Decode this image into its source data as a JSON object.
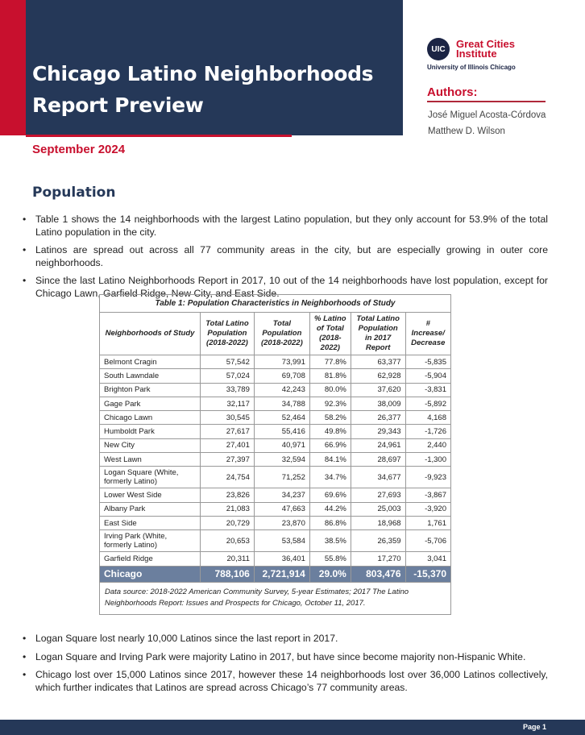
{
  "header": {
    "title_line1": "Chicago Latino Neighborhoods",
    "title_line2": "Report Preview",
    "date": "September 2024"
  },
  "logo": {
    "badge": "UIC",
    "name_line1": "Great Cities",
    "name_line2": "Institute",
    "university": "University of Illinois Chicago"
  },
  "authors": {
    "heading": "Authors:",
    "names": [
      "José Miguel Acosta-Córdova",
      "Matthew D. Wilson"
    ]
  },
  "section": {
    "heading": "Population"
  },
  "bullets_top": [
    "Table 1 shows the 14 neighborhoods with the largest Latino population, but they only account for 53.9% of the total Latino population in the city.",
    "Latinos are spread out across all 77 community areas in the city, but are especially growing in outer core neighborhoods.",
    "Since the last Latino Neighborhoods Report in 2017, 10 out of the 14 neighborhoods have lost population, except for Chicago Lawn, Garfield Ridge, New City, and East Side."
  ],
  "table": {
    "caption": "Table 1: Population Characteristics in Neighborhoods of Study",
    "headers": [
      "Neighborhoods of Study",
      "Total Latino Population (2018-2022)",
      "Total Population (2018-2022)",
      "% Latino of Total (2018-2022)",
      "Total Latino Population in 2017 Report",
      "# Increase/ Decrease"
    ],
    "rows": [
      [
        "Belmont Cragin",
        "57,542",
        "73,991",
        "77.8%",
        "63,377",
        "-5,835"
      ],
      [
        "South Lawndale",
        "57,024",
        "69,708",
        "81.8%",
        "62,928",
        "-5,904"
      ],
      [
        "Brighton Park",
        "33,789",
        "42,243",
        "80.0%",
        "37,620",
        "-3,831"
      ],
      [
        "Gage Park",
        "32,117",
        "34,788",
        "92.3%",
        "38,009",
        "-5,892"
      ],
      [
        "Chicago Lawn",
        "30,545",
        "52,464",
        "58.2%",
        "26,377",
        "4,168"
      ],
      [
        "Humboldt Park",
        "27,617",
        "55,416",
        "49.8%",
        "29,343",
        "-1,726"
      ],
      [
        "New City",
        "27,401",
        "40,971",
        "66.9%",
        "24,961",
        "2,440"
      ],
      [
        "West Lawn",
        "27,397",
        "32,594",
        "84.1%",
        "28,697",
        "-1,300"
      ],
      [
        "Logan Square (White, formerly Latino)",
        "24,754",
        "71,252",
        "34.7%",
        "34,677",
        "-9,923"
      ],
      [
        "Lower West Side",
        "23,826",
        "34,237",
        "69.6%",
        "27,693",
        "-3,867"
      ],
      [
        "Albany Park",
        "21,083",
        "47,663",
        "44.2%",
        "25,003",
        "-3,920"
      ],
      [
        "East Side",
        "20,729",
        "23,870",
        "86.8%",
        "18,968",
        "1,761"
      ],
      [
        "Irving Park (White, formerly Latino)",
        "20,653",
        "53,584",
        "38.5%",
        "26,359",
        "-5,706"
      ],
      [
        "Garfield Ridge",
        "20,311",
        "36,401",
        "55.8%",
        "17,270",
        "3,041"
      ]
    ],
    "total": [
      "Chicago",
      "788,106",
      "2,721,914",
      "29.0%",
      "803,476",
      "-15,370"
    ],
    "source": "Data source: 2018-2022 American Community Survey, 5-year Estimates; 2017 The Latino Neighborhoods Report: Issues and Prospects for Chicago, October 11, 2017."
  },
  "bullets_bottom": [
    "Logan Square lost nearly 10,000 Latinos since the last report in 2017.",
    "Logan Square and Irving Park were majority Latino in 2017, but have since become majority non-Hispanic White.",
    "Chicago lost over 15,000 Latinos since 2017, however these 14 neighborhoods lost over 36,000 Latinos collectively, which further indicates that Latinos are spread across Chicago’s 77 community areas."
  ],
  "footer": {
    "page": "Page 1"
  }
}
